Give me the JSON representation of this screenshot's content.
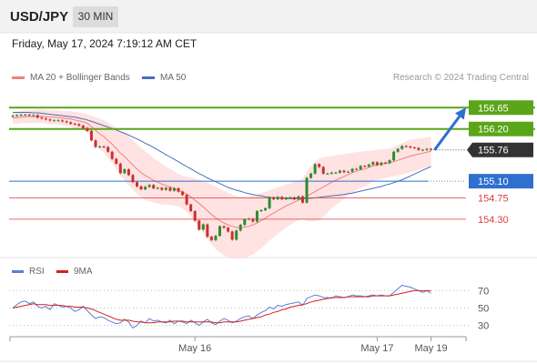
{
  "header": {
    "symbol": "USD/JPY",
    "timeframe": "30 MIN",
    "timestamp": "Friday, May 17, 2024 7:19:12 AM CET"
  },
  "legend": {
    "ma20_label": "MA 20 + Bollinger Bands",
    "ma50_label": "MA 50",
    "credit": "Research © 2024 Trading Central",
    "rsi_label": "RSI",
    "ma9_label": "9MA"
  },
  "colors": {
    "ma20": "#f08080",
    "bands_fill": "#ffd8d8",
    "ma50": "#4a6fb8",
    "bull": "#2e8b2e",
    "bear": "#c83232",
    "resistance": "#5aa51a",
    "support": "#dc3c3c",
    "pivot": "#2f6fcf",
    "current": "#333333",
    "arrow": "#2f6fcf",
    "rsi": "#5a7fd8",
    "ma9": "#d42020"
  },
  "chart_data": [
    {
      "type": "candlestick",
      "name": "price",
      "ylim": [
        153.55,
        157.0
      ],
      "current_price": 155.76,
      "levels": [
        {
          "value": 156.65,
          "label": "156.65",
          "kind": "resistance"
        },
        {
          "value": 156.2,
          "label": "156.20",
          "kind": "resistance"
        },
        {
          "value": 155.76,
          "label": "155.76",
          "kind": "current"
        },
        {
          "value": 155.1,
          "label": "155.10",
          "kind": "pivot"
        },
        {
          "value": 154.75,
          "label": "154.75",
          "kind": "support"
        },
        {
          "value": 154.3,
          "label": "154.30",
          "kind": "support"
        }
      ],
      "x_ticks": [
        {
          "index": 44,
          "label": "May 16"
        },
        {
          "index": 88,
          "label": "May 17"
        },
        {
          "index": 101,
          "label": "May 19"
        }
      ],
      "closes": [
        156.48,
        156.49,
        156.5,
        156.5,
        156.49,
        156.49,
        156.44,
        156.42,
        156.4,
        156.38,
        156.38,
        156.38,
        156.36,
        156.34,
        156.31,
        156.3,
        156.27,
        156.22,
        156.16,
        155.96,
        155.82,
        155.83,
        155.82,
        155.72,
        155.57,
        155.47,
        155.27,
        155.35,
        155.23,
        155.08,
        154.99,
        154.93,
        154.98,
        155.02,
        154.95,
        154.96,
        154.92,
        154.96,
        154.9,
        154.95,
        154.88,
        154.81,
        154.61,
        154.47,
        154.27,
        154.08,
        154.19,
        153.93,
        153.86,
        153.95,
        154.15,
        154.12,
        154.04,
        153.87,
        154.06,
        154.18,
        154.3,
        154.31,
        154.25,
        154.47,
        154.49,
        154.53,
        154.76,
        154.72,
        154.77,
        154.72,
        154.75,
        154.76,
        154.72,
        154.78,
        154.65,
        155.17,
        155.26,
        155.46,
        155.4,
        155.26,
        155.26,
        155.28,
        155.28,
        155.32,
        155.29,
        155.3,
        155.36,
        155.35,
        155.42,
        155.41,
        155.45,
        155.5,
        155.44,
        155.49,
        155.48,
        155.54,
        155.72,
        155.78,
        155.84,
        155.83,
        155.81,
        155.8,
        155.76,
        155.76,
        155.78,
        155.76
      ],
      "opens": [
        156.46,
        156.48,
        156.49,
        156.5,
        156.5,
        156.49,
        156.49,
        156.44,
        156.42,
        156.4,
        156.38,
        156.38,
        156.38,
        156.36,
        156.34,
        156.31,
        156.3,
        156.27,
        156.22,
        156.16,
        155.96,
        155.82,
        155.83,
        155.82,
        155.72,
        155.57,
        155.47,
        155.27,
        155.35,
        155.23,
        155.08,
        154.99,
        154.93,
        154.98,
        155.02,
        154.95,
        154.96,
        154.92,
        154.96,
        154.9,
        154.95,
        154.88,
        154.81,
        154.61,
        154.47,
        154.27,
        154.08,
        154.19,
        153.93,
        153.86,
        153.95,
        154.15,
        154.12,
        154.04,
        153.87,
        154.06,
        154.18,
        154.3,
        154.31,
        154.25,
        154.47,
        154.49,
        154.53,
        154.76,
        154.72,
        154.77,
        154.72,
        154.75,
        154.76,
        154.72,
        154.78,
        154.65,
        155.17,
        155.26,
        155.46,
        155.4,
        155.26,
        155.26,
        155.28,
        155.28,
        155.32,
        155.29,
        155.3,
        155.36,
        155.35,
        155.42,
        155.41,
        155.45,
        155.5,
        155.44,
        155.49,
        155.48,
        155.54,
        155.72,
        155.78,
        155.84,
        155.83,
        155.81,
        155.8,
        155.76,
        155.76,
        155.78
      ],
      "highs": [
        156.5,
        156.51,
        156.52,
        156.52,
        156.52,
        156.51,
        156.51,
        156.46,
        156.44,
        156.42,
        156.4,
        156.4,
        156.4,
        156.38,
        156.36,
        156.33,
        156.32,
        156.29,
        156.24,
        156.18,
        155.98,
        155.85,
        155.85,
        155.84,
        155.74,
        155.59,
        155.49,
        155.37,
        155.37,
        155.25,
        155.1,
        155.01,
        155.0,
        155.04,
        155.04,
        154.98,
        154.98,
        154.98,
        154.98,
        154.97,
        154.97,
        154.9,
        154.83,
        154.63,
        154.49,
        154.29,
        154.21,
        154.21,
        153.95,
        153.97,
        154.17,
        154.17,
        154.14,
        154.06,
        154.08,
        154.2,
        154.32,
        154.33,
        154.33,
        154.49,
        154.51,
        154.55,
        154.78,
        154.78,
        154.79,
        154.79,
        154.77,
        154.78,
        154.78,
        154.8,
        154.8,
        155.19,
        155.28,
        155.48,
        155.48,
        155.42,
        155.28,
        155.3,
        155.3,
        155.34,
        155.34,
        155.32,
        155.38,
        155.38,
        155.44,
        155.44,
        155.47,
        155.52,
        155.52,
        155.51,
        155.51,
        155.56,
        155.74,
        155.8,
        155.86,
        155.86,
        155.85,
        155.83,
        155.82,
        155.78,
        155.8,
        155.8
      ],
      "lows": [
        156.44,
        156.46,
        156.47,
        156.48,
        156.47,
        156.47,
        156.42,
        156.4,
        156.38,
        156.36,
        156.36,
        156.36,
        156.34,
        156.32,
        156.29,
        156.28,
        156.25,
        156.2,
        156.14,
        155.94,
        155.8,
        155.8,
        155.8,
        155.7,
        155.55,
        155.45,
        155.25,
        155.25,
        155.21,
        155.06,
        154.97,
        154.91,
        154.91,
        154.96,
        154.93,
        154.93,
        154.9,
        154.9,
        154.88,
        154.88,
        154.86,
        154.79,
        154.59,
        154.45,
        154.25,
        154.06,
        154.06,
        153.91,
        153.84,
        153.84,
        153.93,
        154.1,
        154.02,
        153.85,
        153.85,
        154.04,
        154.16,
        154.28,
        154.23,
        154.23,
        154.45,
        154.47,
        154.51,
        154.7,
        154.7,
        154.7,
        154.7,
        154.73,
        154.7,
        154.7,
        154.63,
        154.63,
        155.15,
        155.24,
        155.38,
        155.24,
        155.24,
        155.24,
        155.26,
        155.26,
        155.27,
        155.27,
        155.28,
        155.33,
        155.33,
        155.39,
        155.39,
        155.43,
        155.42,
        155.42,
        155.46,
        155.46,
        155.52,
        155.7,
        155.76,
        155.81,
        155.79,
        155.78,
        155.74,
        155.74,
        155.74,
        155.74
      ],
      "ma20": [
        156.43,
        156.44,
        156.45,
        156.46,
        156.46,
        156.46,
        156.47,
        156.47,
        156.46,
        156.45,
        156.45,
        156.44,
        156.43,
        156.42,
        156.41,
        156.39,
        156.37,
        156.35,
        156.32,
        156.25,
        156.17,
        156.1,
        156.04,
        155.96,
        155.88,
        155.79,
        155.69,
        155.62,
        155.53,
        155.44,
        155.36,
        155.28,
        155.22,
        155.17,
        155.12,
        155.08,
        155.04,
        155.01,
        154.98,
        154.95,
        154.91,
        154.87,
        154.83,
        154.77,
        154.7,
        154.63,
        154.56,
        154.48,
        154.4,
        154.33,
        154.27,
        154.22,
        154.18,
        154.15,
        154.13,
        154.12,
        154.13,
        154.15,
        154.18,
        154.22,
        154.27,
        154.32,
        154.38,
        154.43,
        154.48,
        154.53,
        154.58,
        154.62,
        154.66,
        154.7,
        154.73,
        154.78,
        154.83,
        154.88,
        154.93,
        154.98,
        155.03,
        155.08,
        155.12,
        155.16,
        155.2,
        155.24,
        155.28,
        155.31,
        155.34,
        155.36,
        155.39,
        155.42,
        155.44,
        155.46,
        155.47,
        155.49,
        155.51,
        155.54,
        155.57,
        155.6,
        155.63,
        155.65,
        155.67,
        155.69,
        155.71,
        155.73
      ],
      "upper": [
        156.55,
        156.57,
        156.58,
        156.59,
        156.6,
        156.6,
        156.61,
        156.61,
        156.6,
        156.6,
        156.6,
        156.59,
        156.58,
        156.58,
        156.57,
        156.56,
        156.55,
        156.53,
        156.51,
        156.48,
        156.45,
        156.42,
        156.38,
        156.33,
        156.28,
        156.22,
        156.16,
        156.11,
        156.04,
        155.96,
        155.88,
        155.8,
        155.73,
        155.66,
        155.59,
        155.53,
        155.47,
        155.41,
        155.36,
        155.31,
        155.25,
        155.22,
        155.2,
        155.18,
        155.16,
        155.13,
        155.1,
        155.07,
        155.03,
        154.99,
        154.94,
        154.9,
        154.86,
        154.82,
        154.79,
        154.77,
        154.77,
        154.78,
        154.8,
        154.82,
        154.85,
        154.88,
        154.91,
        154.94,
        154.97,
        155.0,
        155.03,
        155.06,
        155.09,
        155.12,
        155.15,
        155.3,
        155.41,
        155.5,
        155.57,
        155.6,
        155.62,
        155.63,
        155.65,
        155.66,
        155.67,
        155.68,
        155.7,
        155.71,
        155.72,
        155.73,
        155.74,
        155.75,
        155.76,
        155.77,
        155.78,
        155.79,
        155.82,
        155.86,
        155.9,
        155.94,
        155.97,
        155.99,
        156.0,
        156.01,
        156.02,
        156.03
      ],
      "lower": [
        156.31,
        156.31,
        156.32,
        156.33,
        156.32,
        156.32,
        156.33,
        156.33,
        156.32,
        156.3,
        156.3,
        156.29,
        156.28,
        156.26,
        156.25,
        156.22,
        156.19,
        156.17,
        156.13,
        156.02,
        155.89,
        155.78,
        155.7,
        155.59,
        155.48,
        155.36,
        155.22,
        155.13,
        155.02,
        154.92,
        154.84,
        154.76,
        154.71,
        154.68,
        154.65,
        154.63,
        154.61,
        154.61,
        154.6,
        154.59,
        154.57,
        154.52,
        154.46,
        154.36,
        154.24,
        154.13,
        154.02,
        153.89,
        153.77,
        153.67,
        153.6,
        153.54,
        153.5,
        153.48,
        153.47,
        153.47,
        153.49,
        153.52,
        153.56,
        153.62,
        153.69,
        153.76,
        153.85,
        153.92,
        153.99,
        154.06,
        154.13,
        154.18,
        154.23,
        154.28,
        154.31,
        154.26,
        154.25,
        154.26,
        154.29,
        154.36,
        154.44,
        154.53,
        154.59,
        154.66,
        154.73,
        154.8,
        154.86,
        154.91,
        154.96,
        154.99,
        155.04,
        155.09,
        155.12,
        155.15,
        155.16,
        155.19,
        155.2,
        155.22,
        155.24,
        155.26,
        155.29,
        155.31,
        155.34,
        155.37,
        155.4,
        155.43
      ],
      "ma50": [
        156.55,
        156.55,
        156.55,
        156.55,
        156.55,
        156.54,
        156.54,
        156.53,
        156.52,
        156.51,
        156.5,
        156.49,
        156.48,
        156.47,
        156.46,
        156.45,
        156.43,
        156.41,
        156.39,
        156.36,
        156.33,
        156.3,
        156.27,
        156.24,
        156.21,
        156.18,
        156.14,
        156.11,
        156.07,
        156.03,
        155.99,
        155.95,
        155.9,
        155.86,
        155.81,
        155.76,
        155.71,
        155.66,
        155.61,
        155.56,
        155.51,
        155.46,
        155.41,
        155.36,
        155.31,
        155.26,
        155.22,
        155.17,
        155.13,
        155.09,
        155.05,
        155.01,
        154.97,
        154.94,
        154.91,
        154.89,
        154.86,
        154.84,
        154.82,
        154.8,
        154.79,
        154.77,
        154.76,
        154.75,
        154.75,
        154.74,
        154.74,
        154.73,
        154.73,
        154.73,
        154.73,
        154.74,
        154.74,
        154.75,
        154.76,
        154.77,
        154.78,
        154.79,
        154.8,
        154.81,
        154.82,
        154.84,
        154.85,
        154.87,
        154.89,
        154.91,
        154.93,
        154.95,
        154.97,
        154.99,
        155.02,
        155.04,
        155.07,
        155.1,
        155.13,
        155.17,
        155.21,
        155.25,
        155.29,
        155.33,
        155.37,
        155.41
      ]
    },
    {
      "type": "line",
      "name": "RSI",
      "ylim": [
        15,
        85
      ],
      "y_ticks": [
        70,
        50,
        30
      ],
      "overbought": 70,
      "oversold": 30,
      "series": [
        {
          "name": "RSI",
          "values": [
            50,
            54,
            57,
            58,
            55,
            57,
            52,
            50,
            52,
            48,
            55,
            53,
            51,
            52,
            50,
            46,
            48,
            52,
            47,
            42,
            38,
            40,
            39,
            36,
            34,
            32,
            33,
            37,
            34,
            27,
            30,
            35,
            33,
            38,
            35,
            36,
            34,
            33,
            36,
            32,
            35,
            34,
            32,
            36,
            33,
            30,
            34,
            37,
            33,
            31,
            35,
            38,
            36,
            33,
            35,
            38,
            40,
            41,
            38,
            42,
            45,
            47,
            51,
            49,
            53,
            52,
            54,
            55,
            56,
            57,
            53,
            61,
            63,
            65,
            64,
            62,
            62,
            61,
            64,
            63,
            62,
            63,
            65,
            64,
            64,
            63,
            64,
            65,
            64,
            65,
            64,
            64,
            68,
            72,
            76,
            75,
            74,
            72,
            70,
            68,
            70,
            67
          ]
        },
        {
          "name": "9MA",
          "values": [
            50,
            51,
            52,
            53,
            54,
            55,
            54,
            54,
            54,
            53,
            53,
            53,
            53,
            52,
            52,
            51,
            51,
            51,
            50,
            49,
            47,
            45,
            43,
            41,
            39,
            37,
            36,
            36,
            36,
            35,
            34,
            34,
            33,
            33,
            33,
            34,
            34,
            34,
            34,
            35,
            35,
            35,
            34,
            34,
            34,
            34,
            34,
            34,
            34,
            33,
            33,
            34,
            34,
            34,
            34,
            35,
            36,
            37,
            38,
            39,
            40,
            42,
            43,
            45,
            46,
            48,
            49,
            51,
            52,
            53,
            54,
            55,
            57,
            58,
            59,
            60,
            61,
            62,
            62,
            62,
            62,
            63,
            63,
            63,
            63,
            63,
            63,
            64,
            64,
            64,
            64,
            64,
            65,
            66,
            67,
            68,
            69,
            70,
            70,
            70,
            70,
            70
          ]
        }
      ]
    }
  ]
}
